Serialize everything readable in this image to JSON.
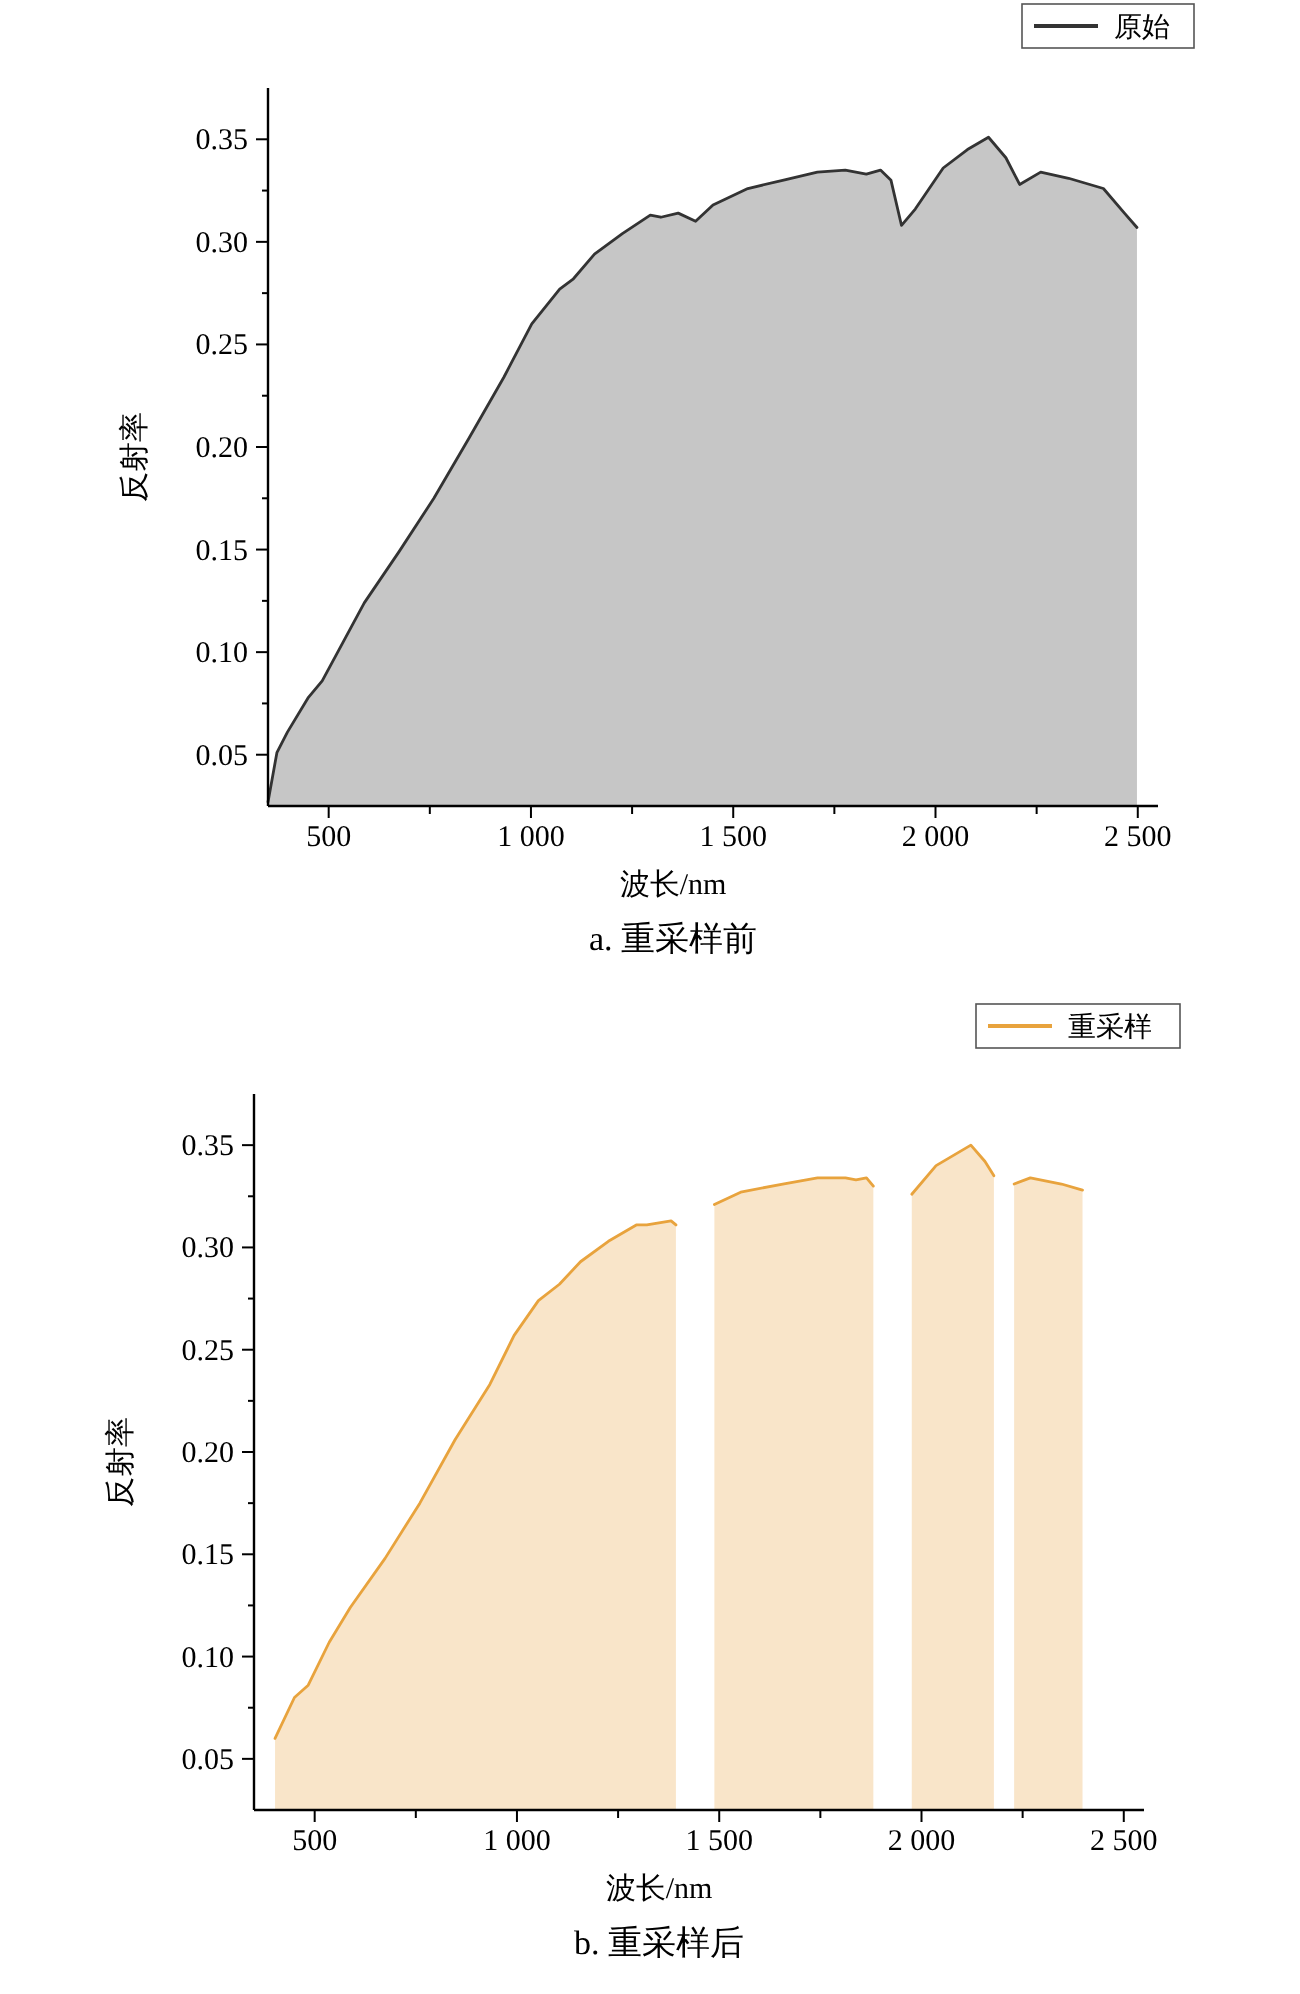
{
  "chart_data": [
    {
      "type": "area",
      "title": "a. 重采样前",
      "xlabel": "波长/nm",
      "ylabel": "反射率",
      "legend": "top right",
      "xlim": [
        350,
        2550
      ],
      "ylim": [
        0.025,
        0.375
      ],
      "xticks": [
        {
          "value": 500,
          "label": "500"
        },
        {
          "value": 750,
          "label": null
        },
        {
          "value": 1000,
          "label": "1 000"
        },
        {
          "value": 1250,
          "label": null
        },
        {
          "value": 1500,
          "label": "1 500"
        },
        {
          "value": 1750,
          "label": null
        },
        {
          "value": 2000,
          "label": "2 000"
        },
        {
          "value": 2250,
          "label": null
        },
        {
          "value": 2500,
          "label": "2 500"
        }
      ],
      "yticks": [
        {
          "value": 0.05,
          "label": "0.05"
        },
        {
          "value": 0.075,
          "label": null
        },
        {
          "value": 0.1,
          "label": "0.10"
        },
        {
          "value": 0.125,
          "label": null
        },
        {
          "value": 0.15,
          "label": "0.15"
        },
        {
          "value": 0.175,
          "label": null
        },
        {
          "value": 0.2,
          "label": "0.20"
        },
        {
          "value": 0.225,
          "label": null
        },
        {
          "value": 0.25,
          "label": "0.25"
        },
        {
          "value": 0.275,
          "label": null
        },
        {
          "value": 0.3,
          "label": "0.30"
        },
        {
          "value": 0.325,
          "label": null
        },
        {
          "value": 0.35,
          "label": "0.35"
        }
      ],
      "series": [
        {
          "name": "原始",
          "color": "#333333",
          "x": [
            350,
            372,
            398,
            450,
            484,
            536,
            588,
            674,
            760,
            846,
            933,
            1002,
            1071,
            1105,
            1157,
            1226,
            1295,
            1321,
            1364,
            1407,
            1450,
            1536,
            1622,
            1708,
            1777,
            1829,
            1864,
            1890,
            1916,
            1950,
            2019,
            2079,
            2131,
            2174,
            2208,
            2260,
            2329,
            2415,
            2467,
            2498
          ],
          "values": [
            0.027,
            0.051,
            0.061,
            0.078,
            0.086,
            0.105,
            0.124,
            0.149,
            0.175,
            0.204,
            0.234,
            0.26,
            0.277,
            0.282,
            0.294,
            0.304,
            0.313,
            0.312,
            0.314,
            0.31,
            0.318,
            0.326,
            0.33,
            0.334,
            0.335,
            0.333,
            0.335,
            0.33,
            0.308,
            0.316,
            0.336,
            0.345,
            0.351,
            0.341,
            0.328,
            0.334,
            0.331,
            0.326,
            0.314,
            0.307
          ]
        }
      ]
    },
    {
      "type": "area",
      "title": "b. 重采样后",
      "xlabel": "波长/nm",
      "ylabel": "反射率",
      "legend": "top right",
      "xlim": [
        350,
        2550
      ],
      "ylim": [
        0.025,
        0.375
      ],
      "xticks": [
        {
          "value": 500,
          "label": "500"
        },
        {
          "value": 750,
          "label": null
        },
        {
          "value": 1000,
          "label": "1 000"
        },
        {
          "value": 1250,
          "label": null
        },
        {
          "value": 1500,
          "label": "1 500"
        },
        {
          "value": 1750,
          "label": null
        },
        {
          "value": 2000,
          "label": "2 000"
        },
        {
          "value": 2250,
          "label": null
        },
        {
          "value": 2500,
          "label": "2 500"
        }
      ],
      "yticks": [
        {
          "value": 0.05,
          "label": "0.05"
        },
        {
          "value": 0.075,
          "label": null
        },
        {
          "value": 0.1,
          "label": "0.10"
        },
        {
          "value": 0.125,
          "label": null
        },
        {
          "value": 0.15,
          "label": "0.15"
        },
        {
          "value": 0.175,
          "label": null
        },
        {
          "value": 0.2,
          "label": "0.20"
        },
        {
          "value": 0.225,
          "label": null
        },
        {
          "value": 0.25,
          "label": "0.25"
        },
        {
          "value": 0.275,
          "label": null
        },
        {
          "value": 0.3,
          "label": "0.30"
        },
        {
          "value": 0.325,
          "label": null
        },
        {
          "value": 0.35,
          "label": "0.35"
        }
      ],
      "series": [
        {
          "name": "重采样",
          "color": "#e8a33d",
          "x": [
            402,
            450,
            484,
            536,
            588,
            674,
            760,
            847,
            933,
            993,
            1053,
            1105,
            1157,
            1226,
            1295,
            1321,
            1381,
            1393
          ],
          "values": [
            0.06,
            0.08,
            0.086,
            0.107,
            0.124,
            0.148,
            0.175,
            0.206,
            0.233,
            0.257,
            0.274,
            0.282,
            0.293,
            0.303,
            0.311,
            0.311,
            0.313,
            0.311
          ]
        },
        {
          "color": "#e8a33d",
          "x": [
            1488,
            1553,
            1657,
            1743,
            1812,
            1838,
            1864,
            1881
          ],
          "values": [
            0.321,
            0.327,
            0.331,
            0.334,
            0.334,
            0.333,
            0.334,
            0.33
          ]
        },
        {
          "color": "#e8a33d",
          "x": [
            1976,
            2036,
            2122,
            2157,
            2179
          ],
          "values": [
            0.326,
            0.34,
            0.35,
            0.342,
            0.335
          ]
        },
        {
          "color": "#e8a33d",
          "x": [
            2229,
            2269,
            2346,
            2398
          ],
          "values": [
            0.331,
            0.334,
            0.331,
            0.328
          ]
        }
      ]
    }
  ]
}
